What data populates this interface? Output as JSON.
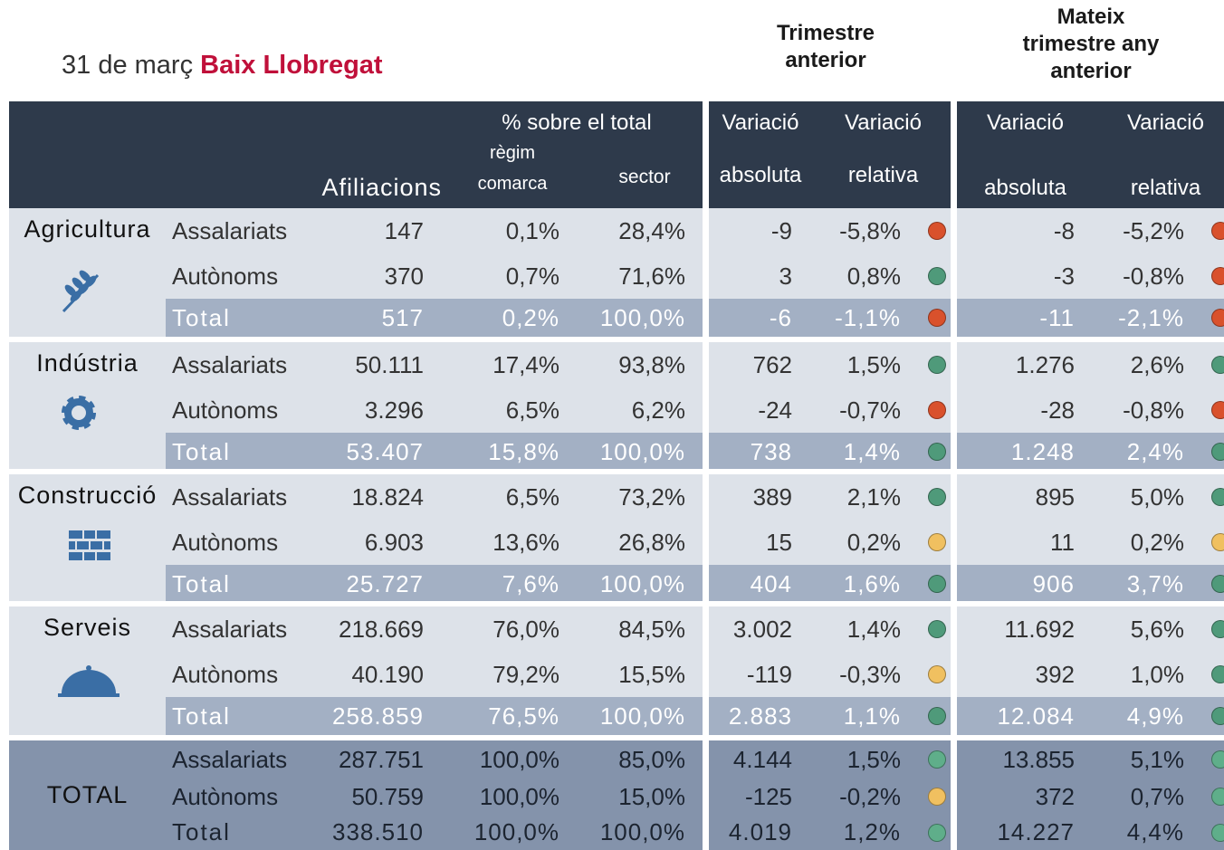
{
  "header": {
    "date": "31 de març",
    "region": "Baix Llobregat",
    "group1": [
      "Trimestre",
      "anterior"
    ],
    "group2": [
      "Mateix",
      "trimestre any",
      "anterior"
    ]
  },
  "columns": {
    "afiliacions": "Afiliacions",
    "pct": "% sobre el total",
    "regim": [
      "règim",
      "comarca"
    ],
    "sector": "sector",
    "var1": "Variació",
    "abs1": "absoluta",
    "var2": "Variació",
    "rel1": "relativa",
    "var3": "Variació",
    "abs2": "absoluta",
    "var4": "Variació",
    "rel2": "relativa"
  },
  "sections": [
    {
      "name": "Agricultura",
      "rows": [
        {
          "label": "Assalariats",
          "cells": [
            "147",
            "0,1%",
            "28,4%",
            "-9",
            "-5,8%",
            "-8",
            "-5,2%"
          ],
          "dots": [
            "#d9512c",
            "#d9512c"
          ]
        },
        {
          "label": "Autònoms",
          "cells": [
            "370",
            "0,7%",
            "71,6%",
            "3",
            "0,8%",
            "-3",
            "-0,8%"
          ],
          "dots": [
            "#4f9a7a",
            "#d9512c"
          ]
        },
        {
          "label": "Total",
          "cells": [
            "517",
            "0,2%",
            "100,0%",
            "-6",
            "-1,1%",
            "-11",
            "-2,1%"
          ],
          "dots": [
            "#d9512c",
            "#d9512c"
          ]
        }
      ]
    },
    {
      "name": "Indústria",
      "rows": [
        {
          "label": "Assalariats",
          "cells": [
            "50.111",
            "17,4%",
            "93,8%",
            "762",
            "1,5%",
            "1.276",
            "2,6%"
          ],
          "dots": [
            "#4f9a7a",
            "#4f9a7a"
          ]
        },
        {
          "label": "Autònoms",
          "cells": [
            "3.296",
            "6,5%",
            "6,2%",
            "-24",
            "-0,7%",
            "-28",
            "-0,8%"
          ],
          "dots": [
            "#d9512c",
            "#d9512c"
          ]
        },
        {
          "label": "Total",
          "cells": [
            "53.407",
            "15,8%",
            "100,0%",
            "738",
            "1,4%",
            "1.248",
            "2,4%"
          ],
          "dots": [
            "#4f9a7a",
            "#4f9a7a"
          ]
        }
      ]
    },
    {
      "name": "Construcció",
      "rows": [
        {
          "label": "Assalariats",
          "cells": [
            "18.824",
            "6,5%",
            "73,2%",
            "389",
            "2,1%",
            "895",
            "5,0%"
          ],
          "dots": [
            "#4f9a7a",
            "#4f9a7a"
          ]
        },
        {
          "label": "Autònoms",
          "cells": [
            "6.903",
            "13,6%",
            "26,8%",
            "15",
            "0,2%",
            "11",
            "0,2%"
          ],
          "dots": [
            "#f0c060",
            "#f0c060"
          ]
        },
        {
          "label": "Total",
          "cells": [
            "25.727",
            "7,6%",
            "100,0%",
            "404",
            "1,6%",
            "906",
            "3,7%"
          ],
          "dots": [
            "#4f9a7a",
            "#4f9a7a"
          ]
        }
      ]
    },
    {
      "name": "Serveis",
      "rows": [
        {
          "label": "Assalariats",
          "cells": [
            "218.669",
            "76,0%",
            "84,5%",
            "3.002",
            "1,4%",
            "11.692",
            "5,6%"
          ],
          "dots": [
            "#4f9a7a",
            "#4f9a7a"
          ]
        },
        {
          "label": "Autònoms",
          "cells": [
            "40.190",
            "79,2%",
            "15,5%",
            "-119",
            "-0,3%",
            "392",
            "1,0%"
          ],
          "dots": [
            "#f0c060",
            "#4f9a7a"
          ]
        },
        {
          "label": "Total",
          "cells": [
            "258.859",
            "76,5%",
            "100,0%",
            "2.883",
            "1,1%",
            "12.084",
            "4,9%"
          ],
          "dots": [
            "#4f9a7a",
            "#4f9a7a"
          ]
        }
      ]
    },
    {
      "name": "TOTAL",
      "rows": [
        {
          "label": "Assalariats",
          "cells": [
            "287.751",
            "100,0%",
            "85,0%",
            "4.144",
            "1,5%",
            "13.855",
            "5,1%"
          ],
          "dots": [
            "#5fae8a",
            "#5fae8a"
          ]
        },
        {
          "label": "Autònoms",
          "cells": [
            "50.759",
            "100,0%",
            "15,0%",
            "-125",
            "-0,2%",
            "372",
            "0,7%"
          ],
          "dots": [
            "#f0c060",
            "#5fae8a"
          ]
        },
        {
          "label": "Total",
          "cells": [
            "338.510",
            "100,0%",
            "100,0%",
            "4.019",
            "1,2%",
            "14.227",
            "4,4%"
          ],
          "dots": [
            "#5fae8a",
            "#5fae8a"
          ]
        }
      ]
    }
  ]
}
